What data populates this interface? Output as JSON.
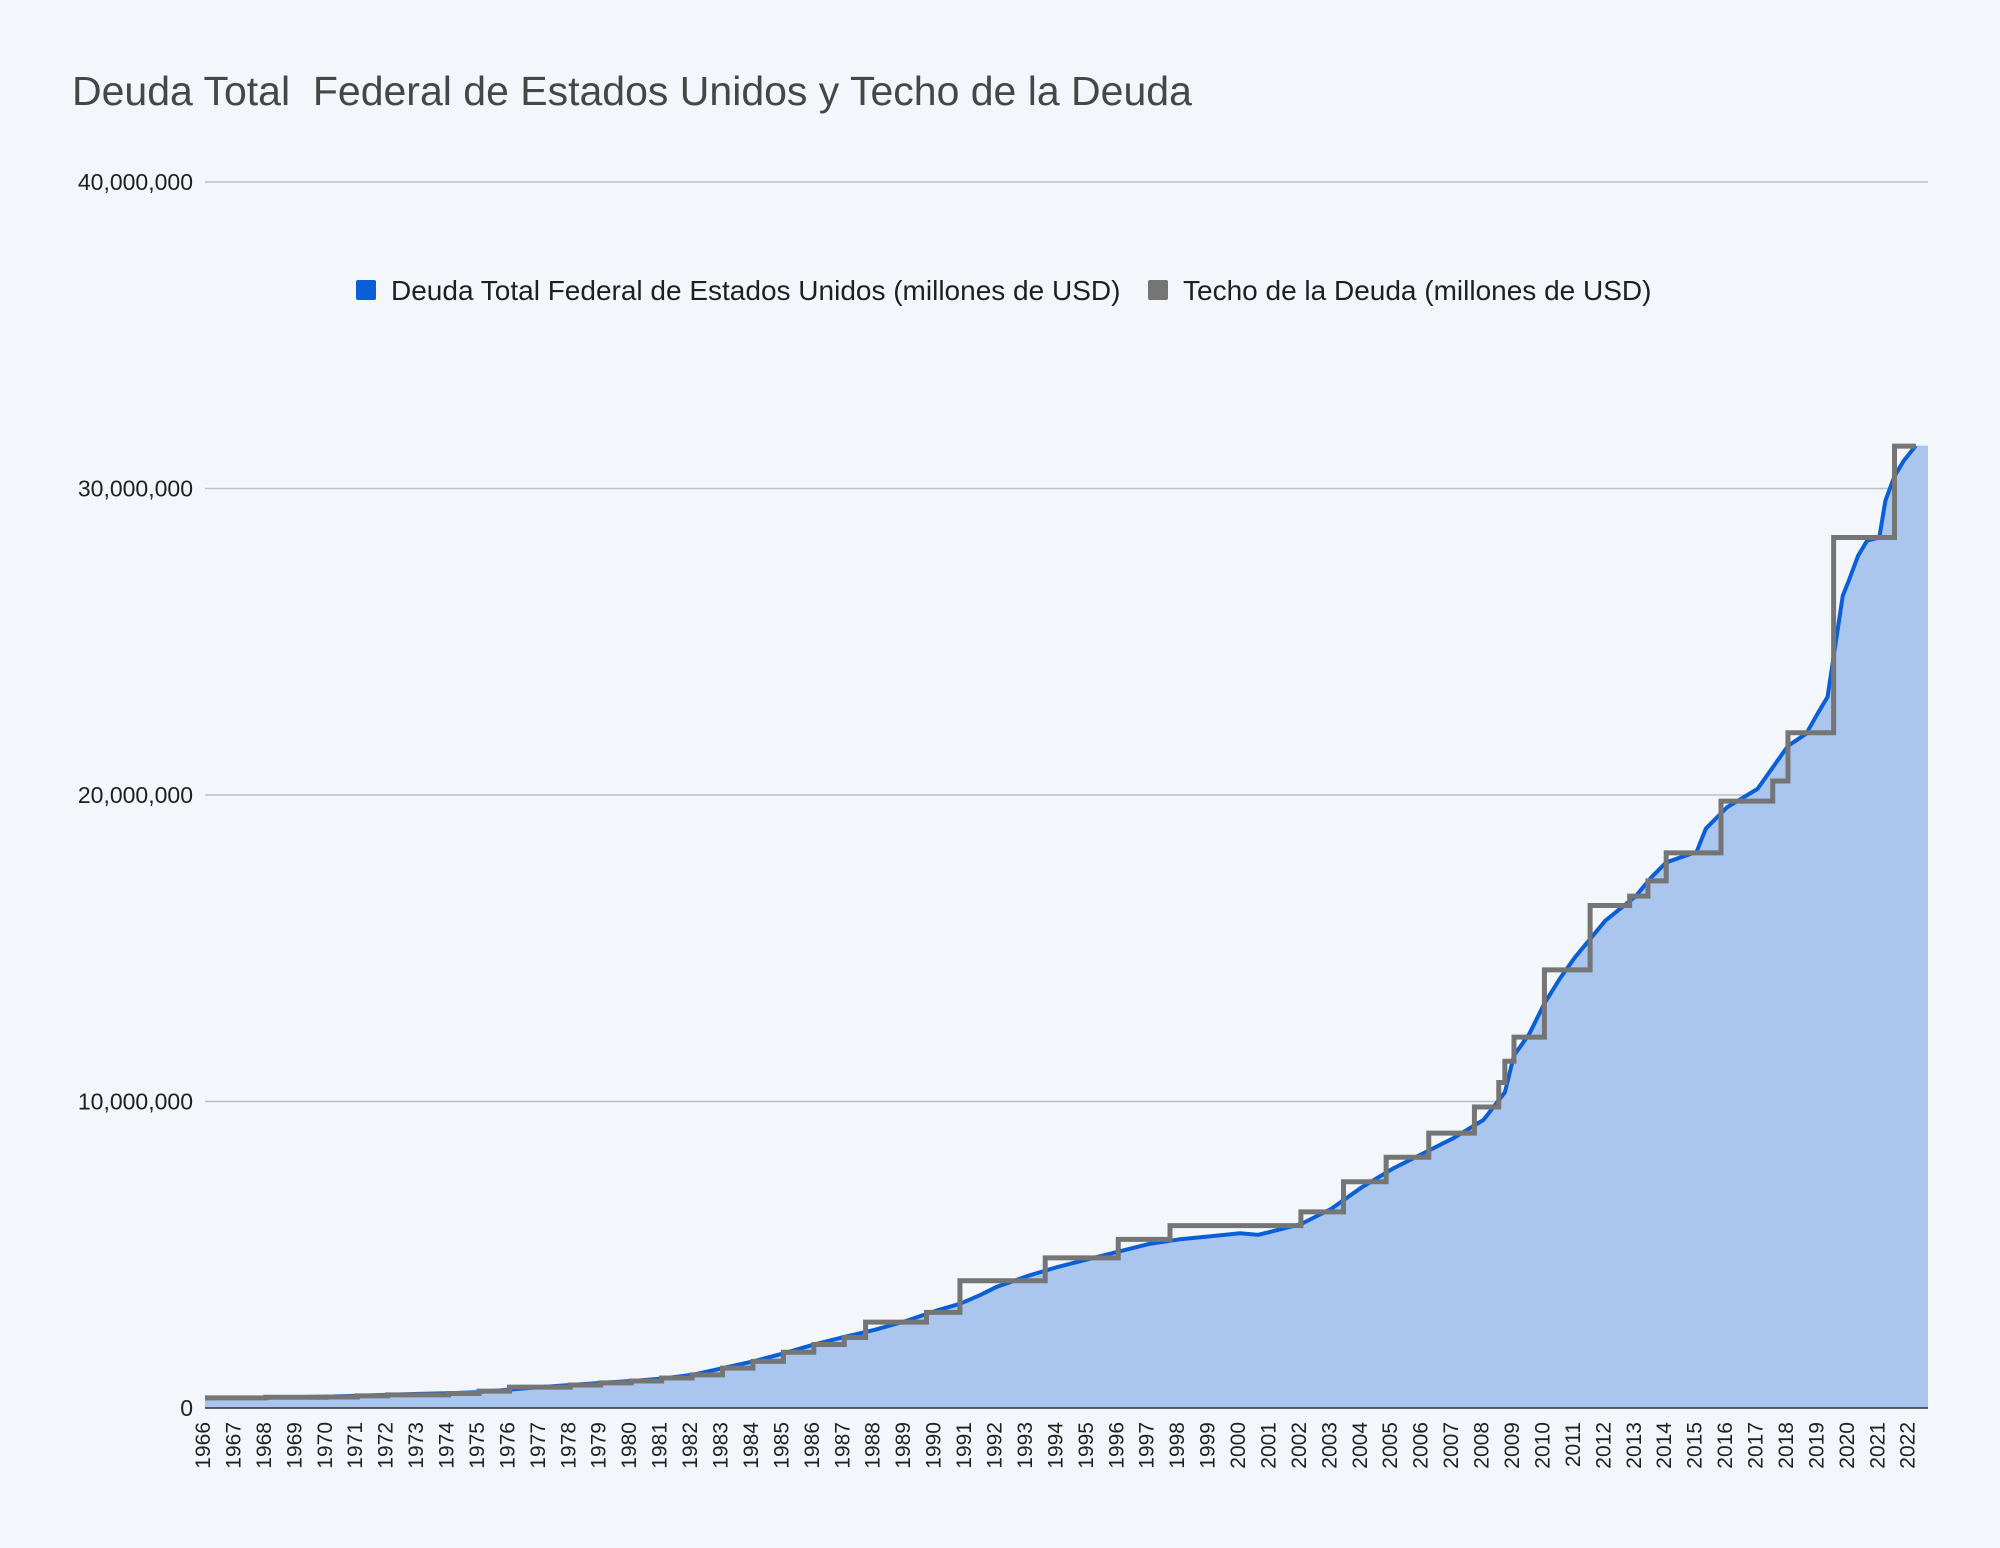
{
  "chart_data": {
    "type": "area",
    "title": "Deuda Total  Federal de Estados Unidos y Techo de la Deuda",
    "xlabel": "",
    "ylabel": "",
    "ylim": [
      0,
      40000000
    ],
    "yticks": [
      "0",
      "10,000,000",
      "20,000,000",
      "30,000,000",
      "40,000,000"
    ],
    "grid": true,
    "legend_position": "top",
    "categories": [
      "1966",
      "1967",
      "1968",
      "1969",
      "1970",
      "1971",
      "1972",
      "1973",
      "1974",
      "1975",
      "1976",
      "1977",
      "1978",
      "1979",
      "1980",
      "1981",
      "1982",
      "1983",
      "1984",
      "1985",
      "1986",
      "1987",
      "1988",
      "1989",
      "1990",
      "1991",
      "1992",
      "1993",
      "1994",
      "1995",
      "1996",
      "1997",
      "1998",
      "1999",
      "2000",
      "2001",
      "2002",
      "2003",
      "2004",
      "2005",
      "2006",
      "2007",
      "2008",
      "2009",
      "2010",
      "2011",
      "2012",
      "2013",
      "2014",
      "2015",
      "2016",
      "2017",
      "2018",
      "2019",
      "2020",
      "2021",
      "2022"
    ],
    "series": [
      {
        "name": "Deuda Total  Federal de Estados Unidos (millones de USD)",
        "color": "#0b5fd6",
        "fill": "#aac6ee",
        "style": "area-line",
        "points": [
          [
            1966,
            320000
          ],
          [
            1967,
            330000
          ],
          [
            1968,
            340000
          ],
          [
            1969,
            355000
          ],
          [
            1970,
            370000
          ],
          [
            1971,
            400000
          ],
          [
            1972,
            430000
          ],
          [
            1973,
            460000
          ],
          [
            1974,
            480000
          ],
          [
            1975,
            520000
          ],
          [
            1976,
            600000
          ],
          [
            1977,
            680000
          ],
          [
            1978,
            750000
          ],
          [
            1979,
            820000
          ],
          [
            1980,
            880000
          ],
          [
            1981,
            960000
          ],
          [
            1982,
            1080000
          ],
          [
            1983,
            1300000
          ],
          [
            1984,
            1520000
          ],
          [
            1985,
            1780000
          ],
          [
            1986,
            2070000
          ],
          [
            1987,
            2320000
          ],
          [
            1988,
            2550000
          ],
          [
            1989,
            2830000
          ],
          [
            1990,
            3170000
          ],
          [
            1990.8,
            3400000
          ],
          [
            1991.5,
            3700000
          ],
          [
            1992,
            3950000
          ],
          [
            1993,
            4300000
          ],
          [
            1994,
            4600000
          ],
          [
            1995,
            4850000
          ],
          [
            1996,
            5100000
          ],
          [
            1997,
            5350000
          ],
          [
            1998,
            5500000
          ],
          [
            1999,
            5600000
          ],
          [
            2000,
            5700000
          ],
          [
            2000.6,
            5650000
          ],
          [
            2001,
            5750000
          ],
          [
            2002,
            6000000
          ],
          [
            2003,
            6500000
          ],
          [
            2004,
            7200000
          ],
          [
            2005,
            7800000
          ],
          [
            2006,
            8300000
          ],
          [
            2007,
            8800000
          ],
          [
            2008,
            9400000
          ],
          [
            2008.7,
            10300000
          ],
          [
            2009,
            11500000
          ],
          [
            2009.5,
            12200000
          ],
          [
            2010,
            13200000
          ],
          [
            2010.5,
            14000000
          ],
          [
            2011,
            14700000
          ],
          [
            2011.5,
            15300000
          ],
          [
            2012,
            15900000
          ],
          [
            2012.5,
            16300000
          ],
          [
            2013,
            16700000
          ],
          [
            2013.5,
            17300000
          ],
          [
            2014,
            17800000
          ],
          [
            2015,
            18150000
          ],
          [
            2015.3,
            18900000
          ],
          [
            2016,
            19600000
          ],
          [
            2016.5,
            19900000
          ],
          [
            2017,
            20200000
          ],
          [
            2017.5,
            20900000
          ],
          [
            2018,
            21600000
          ],
          [
            2018.6,
            22000000
          ],
          [
            2019,
            22700000
          ],
          [
            2019.3,
            23200000
          ],
          [
            2019.8,
            26500000
          ],
          [
            2020,
            27000000
          ],
          [
            2020.3,
            27800000
          ],
          [
            2020.6,
            28300000
          ],
          [
            2021,
            28400000
          ],
          [
            2021.2,
            29600000
          ],
          [
            2021.5,
            30400000
          ],
          [
            2021.8,
            30900000
          ],
          [
            2022.2,
            31400000
          ]
        ]
      },
      {
        "name": "Techo de la Deuda (millones de USD)",
        "color": "#757575",
        "style": "step",
        "steps": [
          [
            1966,
            330000
          ],
          [
            1967,
            330000
          ],
          [
            1968,
            350000
          ],
          [
            1970,
            360000
          ],
          [
            1971,
            395000
          ],
          [
            1972,
            430000
          ],
          [
            1974,
            475000
          ],
          [
            1975,
            550000
          ],
          [
            1976,
            680000
          ],
          [
            1978,
            750000
          ],
          [
            1979,
            820000
          ],
          [
            1980,
            880000
          ],
          [
            1981,
            980000
          ],
          [
            1982,
            1080000
          ],
          [
            1983,
            1300000
          ],
          [
            1984,
            1520000
          ],
          [
            1985,
            1820000
          ],
          [
            1986,
            2070000
          ],
          [
            1987,
            2300000
          ],
          [
            1987.7,
            2800000
          ],
          [
            1989.7,
            3120000
          ],
          [
            1990.8,
            4150000
          ],
          [
            1992.8,
            4150000
          ],
          [
            1993.6,
            4900000
          ],
          [
            1995.2,
            4900000
          ],
          [
            1996,
            5500000
          ],
          [
            1997.7,
            5950000
          ],
          [
            2001.3,
            5950000
          ],
          [
            2002,
            6400000
          ],
          [
            2003.4,
            7380000
          ],
          [
            2004.8,
            8180000
          ],
          [
            2006.2,
            8970000
          ],
          [
            2007.7,
            9820000
          ],
          [
            2008.5,
            10620000
          ],
          [
            2008.7,
            11315000
          ],
          [
            2009,
            12100000
          ],
          [
            2010,
            14294000
          ],
          [
            2011.5,
            16394000
          ],
          [
            2012.8,
            16700000
          ],
          [
            2013.4,
            17200000
          ],
          [
            2014,
            18113000
          ],
          [
            2015.8,
            19800000
          ],
          [
            2017.5,
            20456000
          ],
          [
            2018,
            22030000
          ],
          [
            2019.5,
            28401000
          ],
          [
            2021.5,
            31381000
          ],
          [
            2022.2,
            31381000
          ]
        ]
      }
    ]
  }
}
